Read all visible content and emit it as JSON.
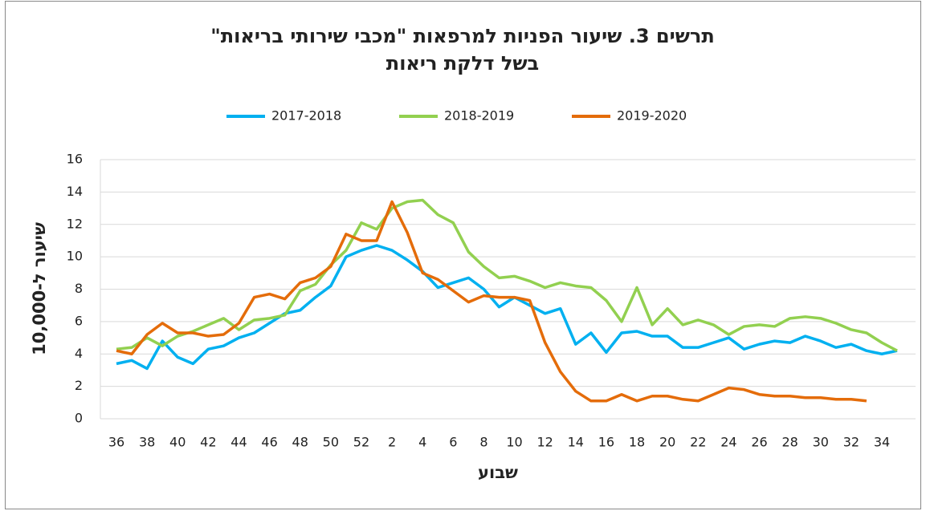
{
  "chart_data": {
    "type": "line",
    "title": [
      "תרשים 3. שיעור הפניות למרפאות \"מכבי שירותי בריאות\"",
      "בשל דלקת ריאות"
    ],
    "xlabel": "שבוע",
    "ylabel": "שיעור ל-10,000",
    "categories": [
      "36",
      null,
      "38",
      null,
      "40",
      null,
      "42",
      null,
      "44",
      null,
      "46",
      null,
      "48",
      null,
      "50",
      null,
      "52",
      null,
      "2",
      null,
      "4",
      null,
      "6",
      null,
      "8",
      null,
      "10",
      null,
      "12",
      null,
      "14",
      null,
      "16",
      null,
      "18",
      null,
      "20",
      null,
      "22",
      null,
      "24",
      null,
      "26",
      null,
      "28",
      null,
      "30",
      null,
      "32",
      null,
      "34",
      null
    ],
    "series": [
      {
        "name": "2017-2018",
        "color": "#00b0f0",
        "values": [
          3.4,
          3.6,
          3.1,
          4.8,
          3.8,
          3.4,
          4.3,
          4.5,
          5.0,
          5.3,
          5.9,
          6.5,
          6.7,
          7.5,
          8.2,
          10.0,
          10.4,
          10.7,
          10.4,
          9.8,
          9.1,
          8.1,
          8.4,
          8.7,
          8.0,
          6.9,
          7.5,
          7.0,
          6.5,
          6.8,
          4.6,
          5.3,
          4.1,
          5.3,
          5.4,
          5.1,
          5.1,
          4.4,
          4.4,
          4.7,
          5.0,
          4.3,
          4.6,
          4.8,
          4.7,
          5.1,
          4.8,
          4.4,
          4.6,
          4.2,
          4.0,
          4.2
        ]
      },
      {
        "name": "2018-2019",
        "color": "#92d050",
        "values": [
          4.3,
          4.4,
          5.0,
          4.5,
          5.1,
          5.4,
          5.8,
          6.2,
          5.5,
          6.1,
          6.2,
          6.4,
          7.9,
          8.3,
          9.5,
          10.4,
          12.1,
          11.7,
          13.0,
          13.4,
          13.5,
          12.6,
          12.1,
          10.3,
          9.4,
          8.7,
          8.8,
          8.5,
          8.1,
          8.4,
          8.2,
          8.1,
          7.3,
          6.0,
          8.1,
          5.8,
          6.8,
          5.8,
          6.1,
          5.8,
          5.2,
          5.7,
          5.8,
          5.7,
          6.2,
          6.3,
          6.2,
          5.9,
          5.5,
          5.3,
          4.7,
          4.2
        ]
      },
      {
        "name": "2019-2020",
        "color": "#e46c0a",
        "values": [
          4.2,
          4.0,
          5.2,
          5.9,
          5.3,
          5.3,
          5.1,
          5.2,
          5.9,
          7.5,
          7.7,
          7.4,
          8.4,
          8.7,
          9.4,
          11.4,
          11.0,
          11.0,
          13.4,
          11.5,
          9.0,
          8.6,
          7.9,
          7.2,
          7.6,
          7.5,
          7.5,
          7.3,
          4.7,
          2.9,
          1.7,
          1.1,
          1.1,
          1.5,
          1.1,
          1.4,
          1.4,
          1.2,
          1.1,
          1.5,
          1.9,
          1.8,
          1.5,
          1.4,
          1.4,
          1.3,
          1.3,
          1.2,
          1.2,
          1.1,
          null,
          null
        ]
      }
    ],
    "ylim": [
      0,
      16
    ],
    "yticks": [
      0,
      2,
      4,
      6,
      8,
      10,
      12,
      14,
      16
    ],
    "grid": true,
    "legend": "top"
  }
}
